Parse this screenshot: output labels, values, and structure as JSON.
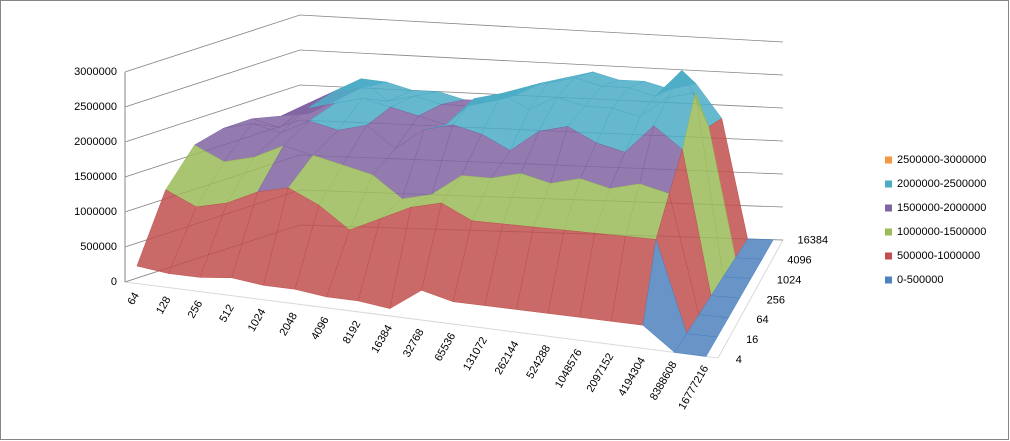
{
  "chart_data": {
    "type": "surface",
    "categories": [
      "64",
      "128",
      "256",
      "512",
      "1024",
      "2048",
      "4096",
      "8192",
      "16384",
      "32768",
      "65536",
      "131072",
      "262144",
      "524288",
      "1048576",
      "2097152",
      "4194304",
      "8388608",
      "16777216"
    ],
    "series": [
      {
        "name": "4",
        "values": [
          250000,
          200000,
          200000,
          250000,
          200000,
          200000,
          150000,
          150000,
          100000,
          400000,
          300000,
          300000,
          300000,
          300000,
          300000,
          300000,
          300000,
          0,
          0
        ]
      },
      {
        "name": "16",
        "values": [
          1200000,
          1000000,
          1100000,
          1300000,
          1400000,
          1200000,
          900000,
          1100000,
          1300000,
          1400000,
          1200000,
          1200000,
          1200000,
          1200000,
          1200000,
          1200000,
          1200000,
          0,
          0
        ]
      },
      {
        "name": "64",
        "values": [
          1700000,
          1500000,
          1600000,
          1800000,
          1700000,
          1600000,
          1500000,
          1200000,
          1300000,
          1600000,
          1600000,
          1700000,
          1600000,
          1700000,
          1600000,
          1700000,
          1600000,
          0,
          0
        ]
      },
      {
        "name": "256",
        "values": [
          1800000,
          1900000,
          1800000,
          2000000,
          1900000,
          2000000,
          1700000,
          2000000,
          2100000,
          2000000,
          1800000,
          2100000,
          2200000,
          2000000,
          1900000,
          2300000,
          2000000,
          0,
          0
        ]
      },
      {
        "name": "1024",
        "values": [
          1800000,
          1700000,
          2000000,
          2100000,
          2200000,
          2100000,
          2000000,
          1900000,
          2300000,
          2400000,
          2200000,
          2400000,
          2300000,
          2300000,
          2200000,
          2500000,
          2600000,
          0,
          0
        ]
      },
      {
        "name": "4096",
        "values": [
          1700000,
          1900000,
          2100000,
          2300000,
          2000000,
          2100000,
          2000000,
          2000000,
          2100000,
          2300000,
          2400000,
          2500000,
          2400000,
          2400000,
          2300000,
          2700000,
          1900000,
          0,
          0
        ]
      },
      {
        "name": "16384",
        "values": [
          1600000,
          1800000,
          2000000,
          2100000,
          2000000,
          2000000,
          1900000,
          1900000,
          2000000,
          2200000,
          2300000,
          2400000,
          2300000,
          2300000,
          2200000,
          2300000,
          1800000,
          0,
          0
        ]
      }
    ],
    "ylim": [
      0,
      3000000
    ],
    "yticks": [
      0,
      500000,
      1000000,
      1500000,
      2000000,
      2500000,
      3000000
    ],
    "grid": true,
    "legend": "right",
    "bands": [
      {
        "label": "0-500000",
        "color": "#4f81bd"
      },
      {
        "label": "500000-1000000",
        "color": "#c0504d"
      },
      {
        "label": "1000000-1500000",
        "color": "#9bbb59"
      },
      {
        "label": "1500000-2000000",
        "color": "#8064a2"
      },
      {
        "label": "2000000-2500000",
        "color": "#4bacc6"
      },
      {
        "label": "2500000-3000000",
        "color": "#f79646"
      }
    ]
  }
}
